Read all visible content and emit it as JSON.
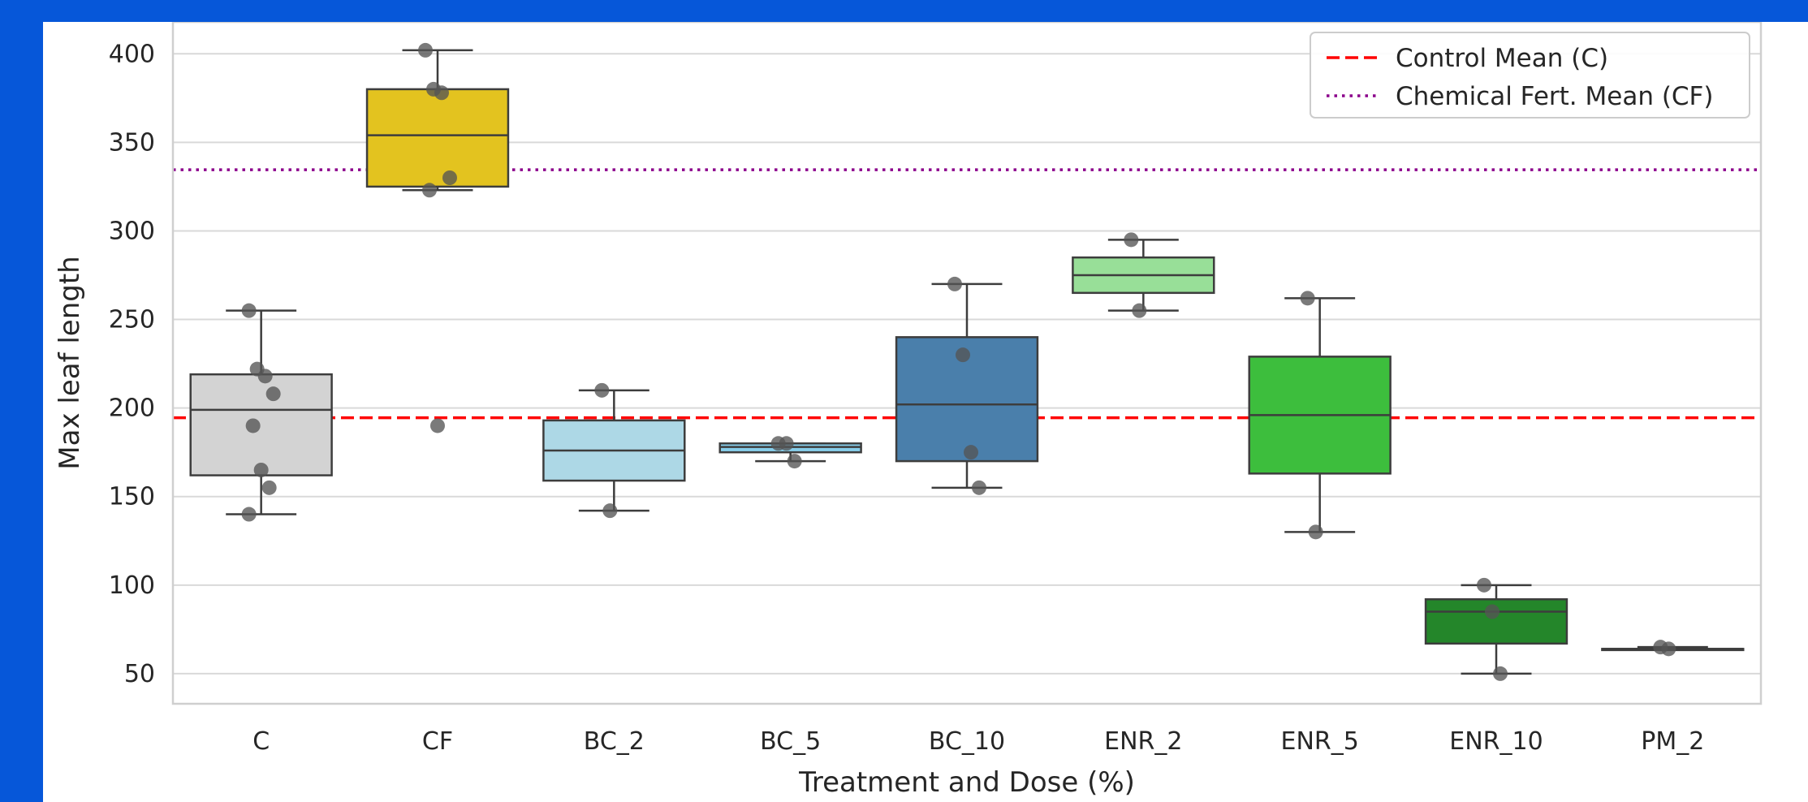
{
  "chart_data": {
    "type": "box",
    "xlabel": "Treatment and Dose (%)",
    "ylabel": "Max leaf length",
    "ylim": [
      33,
      418
    ],
    "yticks": [
      50,
      100,
      150,
      200,
      250,
      300,
      350,
      400
    ],
    "grid": true,
    "legend_position": "top-right",
    "categories": [
      "C",
      "CF",
      "BC_2",
      "BC_5",
      "BC_10",
      "ENR_2",
      "ENR_5",
      "ENR_10",
      "PM_2"
    ],
    "boxes": [
      {
        "category": "C",
        "color": "#d3d3d3",
        "whisker_low": 140,
        "q1": 162,
        "median": 199,
        "q3": 219,
        "whisker_high": 255,
        "points": [
          255,
          222,
          218,
          208,
          190,
          165,
          155,
          140
        ]
      },
      {
        "category": "CF",
        "color": "#e3c31f",
        "whisker_low": 323,
        "q1": 325,
        "median": 354,
        "q3": 380,
        "whisker_high": 402,
        "points": [
          402,
          380,
          378,
          330,
          323,
          190
        ]
      },
      {
        "category": "BC_2",
        "color": "#add8e6",
        "whisker_low": 142,
        "q1": 159,
        "median": 176,
        "q3": 193,
        "whisker_high": 210,
        "points": [
          210,
          142
        ]
      },
      {
        "category": "BC_5",
        "color": "#87ceeb",
        "whisker_low": 170,
        "q1": 175,
        "median": 178,
        "q3": 180,
        "whisker_high": 180,
        "points": [
          180,
          180,
          170
        ]
      },
      {
        "category": "BC_10",
        "color": "#4a7fab",
        "whisker_low": 155,
        "q1": 170,
        "median": 202,
        "q3": 240,
        "whisker_high": 270,
        "points": [
          270,
          230,
          175,
          155
        ]
      },
      {
        "category": "ENR_2",
        "color": "#98df98",
        "whisker_low": 255,
        "q1": 265,
        "median": 275,
        "q3": 285,
        "whisker_high": 295,
        "points": [
          295,
          255
        ]
      },
      {
        "category": "ENR_5",
        "color": "#3dbe3d",
        "whisker_low": 130,
        "q1": 163,
        "median": 196,
        "q3": 229,
        "whisker_high": 262,
        "points": [
          262,
          130
        ]
      },
      {
        "category": "ENR_10",
        "color": "#24862a",
        "whisker_low": 50,
        "q1": 67,
        "median": 85,
        "q3": 92,
        "whisker_high": 100,
        "points": [
          100,
          85,
          50
        ]
      },
      {
        "category": "PM_2",
        "color": "#2e7d32",
        "whisker_low": 64,
        "q1": 64,
        "median": 64,
        "q3": 64,
        "whisker_high": 65,
        "points": [
          65,
          64
        ]
      }
    ],
    "reference_lines": [
      {
        "label": "Control Mean (C)",
        "value": 194.5,
        "color": "#ff0000",
        "style": "dashed"
      },
      {
        "label": "Chemical Fert. Mean (CF)",
        "value": 334.5,
        "color": "#8b008b",
        "style": "dotted"
      }
    ]
  }
}
